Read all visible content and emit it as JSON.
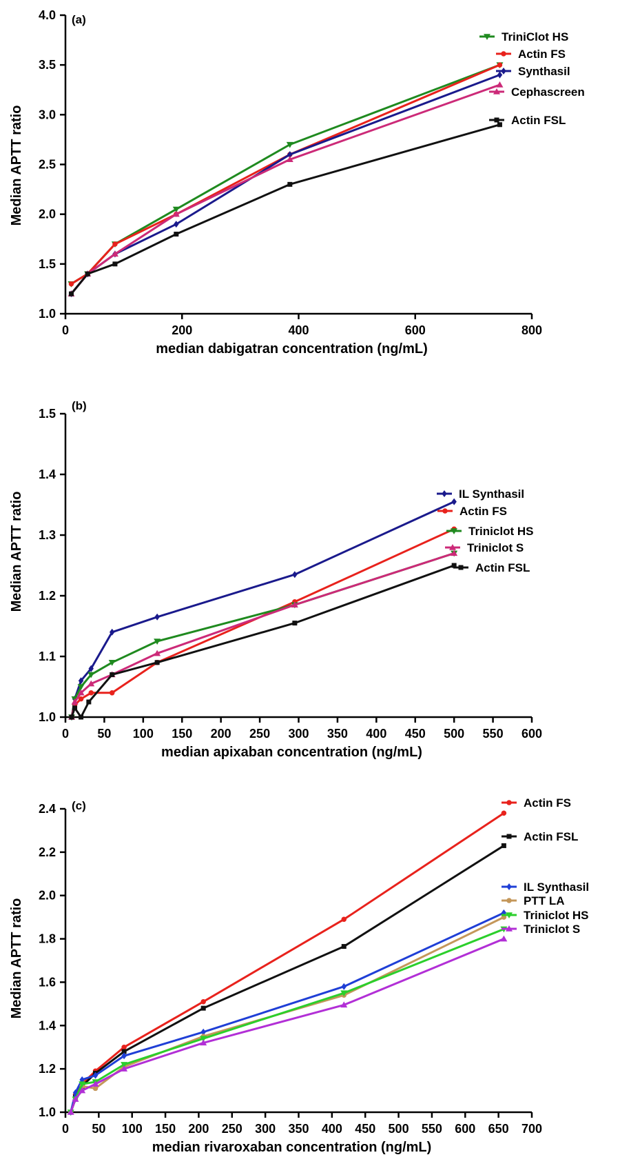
{
  "chart_data": [
    {
      "type": "line",
      "panel_label": "(a)",
      "xlabel": "median dabigatran concentration (ng/mL)",
      "ylabel": "Median APTT ratio",
      "xlim": [
        0,
        800
      ],
      "ylim": [
        1.0,
        4.0
      ],
      "xticks": [
        0,
        200,
        400,
        600,
        800
      ],
      "yticks": [
        1.0,
        1.5,
        2.0,
        2.5,
        3.0,
        3.5,
        4.0
      ],
      "xtick_labels": [
        "0",
        "200",
        "400",
        "600",
        "800"
      ],
      "ytick_labels": [
        "1.0",
        "1.5",
        "2.0",
        "2.5",
        "3.0",
        "3.5",
        "4.0"
      ],
      "legend_position": "right",
      "series": [
        {
          "name": "TriniClot HS",
          "color": "#1f8a1f",
          "marker": "triangle-down",
          "x": [
            10,
            38,
            85,
            190,
            385,
            745
          ],
          "y": [
            1.3,
            1.4,
            1.7,
            2.05,
            2.7,
            3.5
          ]
        },
        {
          "name": "Actin FS",
          "color": "#e8221c",
          "marker": "circle",
          "x": [
            10,
            38,
            85,
            190,
            385,
            745
          ],
          "y": [
            1.3,
            1.4,
            1.7,
            2.0,
            2.6,
            3.5
          ]
        },
        {
          "name": "Synthasil",
          "color": "#1a1a8c",
          "marker": "diamond",
          "x": [
            10,
            38,
            85,
            190,
            385,
            745
          ],
          "y": [
            1.2,
            1.4,
            1.6,
            1.9,
            2.6,
            3.4
          ]
        },
        {
          "name": "Cephascreen",
          "color": "#cc2a78",
          "marker": "triangle-up",
          "x": [
            10,
            38,
            85,
            190,
            385,
            745
          ],
          "y": [
            1.2,
            1.4,
            1.6,
            2.0,
            2.55,
            3.3
          ]
        },
        {
          "name": "Actin FSL",
          "color": "#111111",
          "marker": "square",
          "x": [
            10,
            38,
            85,
            190,
            385,
            745
          ],
          "y": [
            1.2,
            1.4,
            1.5,
            1.8,
            2.3,
            2.9
          ]
        }
      ]
    },
    {
      "type": "line",
      "panel_label": "(b)",
      "xlabel": "median apixaban concentration (ng/mL)",
      "ylabel": "Median APTT ratio",
      "xlim": [
        0,
        600
      ],
      "ylim": [
        1.0,
        1.5
      ],
      "xticks": [
        0,
        50,
        100,
        150,
        200,
        250,
        300,
        350,
        400,
        450,
        500,
        550,
        600
      ],
      "yticks": [
        1.0,
        1.1,
        1.2,
        1.3,
        1.4,
        1.5
      ],
      "xtick_labels": [
        "0",
        "50",
        "100",
        "150",
        "200",
        "250",
        "300",
        "350",
        "400",
        "450",
        "500",
        "550",
        "600"
      ],
      "ytick_labels": [
        "1.0",
        "1.1",
        "1.2",
        "1.3",
        "1.4",
        "1.5"
      ],
      "legend_position": "right",
      "series": [
        {
          "name": "IL Synthasil",
          "color": "#1a1a8c",
          "marker": "diamond",
          "x": [
            8,
            12,
            20,
            33,
            60,
            118,
            295,
            500
          ],
          "y": [
            1.0,
            1.03,
            1.06,
            1.08,
            1.14,
            1.165,
            1.235,
            1.355
          ]
        },
        {
          "name": "Actin FS",
          "color": "#e8221c",
          "marker": "circle",
          "x": [
            8,
            12,
            20,
            33,
            60,
            118,
            295,
            500
          ],
          "y": [
            1.0,
            1.02,
            1.03,
            1.04,
            1.04,
            1.09,
            1.19,
            1.31
          ]
        },
        {
          "name": "Triniclot HS",
          "color": "#1f8a1f",
          "marker": "triangle-down",
          "x": [
            8,
            12,
            20,
            33,
            60,
            118,
            295,
            500
          ],
          "y": [
            1.0,
            1.03,
            1.05,
            1.07,
            1.09,
            1.125,
            1.185,
            1.27
          ]
        },
        {
          "name": "Triniclot S",
          "color": "#cc2a78",
          "marker": "triangle-up",
          "x": [
            8,
            12,
            20,
            33,
            60,
            118,
            295,
            500
          ],
          "y": [
            1.0,
            1.025,
            1.04,
            1.055,
            1.07,
            1.105,
            1.185,
            1.27
          ]
        },
        {
          "name": "Actin FSL",
          "color": "#111111",
          "marker": "square",
          "x": [
            8,
            12,
            20,
            30,
            60,
            118,
            295,
            500
          ],
          "y": [
            1.0,
            1.015,
            1.0,
            1.025,
            1.07,
            1.09,
            1.155,
            1.25
          ]
        }
      ]
    },
    {
      "type": "line",
      "panel_label": "(c)",
      "xlabel": "median rivaroxaban concentration (ng/mL)",
      "ylabel": "Median APTT ratio",
      "xlim": [
        0,
        700
      ],
      "ylim": [
        1.0,
        2.4
      ],
      "xticks": [
        0,
        50,
        100,
        150,
        200,
        250,
        300,
        350,
        400,
        450,
        500,
        550,
        600,
        650,
        700
      ],
      "yticks": [
        1.0,
        1.2,
        1.4,
        1.6,
        1.8,
        2.0,
        2.2,
        2.4
      ],
      "xtick_labels": [
        "0",
        "50",
        "100",
        "150",
        "200",
        "250",
        "300",
        "350",
        "400",
        "450",
        "500",
        "550",
        "600",
        "650",
        "700"
      ],
      "ytick_labels": [
        "1.0",
        "1.2",
        "1.4",
        "1.6",
        "1.8",
        "2.0",
        "2.2",
        "2.4"
      ],
      "legend_position": "right",
      "series": [
        {
          "name": "Actin FS",
          "color": "#e8221c",
          "marker": "circle",
          "x": [
            8,
            15,
            25,
            45,
            88,
            207,
            418,
            658
          ],
          "y": [
            1.0,
            1.08,
            1.13,
            1.19,
            1.3,
            1.51,
            1.89,
            2.38
          ]
        },
        {
          "name": "Actin FSL",
          "color": "#111111",
          "marker": "square",
          "x": [
            8,
            15,
            25,
            45,
            88,
            207,
            418,
            658
          ],
          "y": [
            1.0,
            1.07,
            1.12,
            1.18,
            1.28,
            1.48,
            1.765,
            2.23
          ]
        },
        {
          "name": "IL Synthasil",
          "color": "#1f3fd6",
          "marker": "diamond",
          "x": [
            8,
            15,
            25,
            45,
            88,
            207,
            418,
            658
          ],
          "y": [
            1.0,
            1.09,
            1.15,
            1.17,
            1.26,
            1.37,
            1.58,
            1.92
          ]
        },
        {
          "name": "PTT LA",
          "color": "#c4975a",
          "marker": "circle",
          "x": [
            8,
            15,
            25,
            45,
            88,
            207,
            418,
            658
          ],
          "y": [
            1.0,
            1.06,
            1.12,
            1.11,
            1.21,
            1.35,
            1.54,
            1.9
          ]
        },
        {
          "name": "Triniclot HS",
          "color": "#2bcf2b",
          "marker": "triangle-down",
          "x": [
            8,
            15,
            25,
            45,
            88,
            207,
            418,
            658
          ],
          "y": [
            1.0,
            1.06,
            1.13,
            1.14,
            1.22,
            1.34,
            1.55,
            1.845
          ]
        },
        {
          "name": "Triniclot S",
          "color": "#b22fd6",
          "marker": "triangle-up",
          "x": [
            8,
            15,
            25,
            45,
            88,
            207,
            418,
            658
          ],
          "y": [
            1.0,
            1.06,
            1.1,
            1.13,
            1.2,
            1.32,
            1.495,
            1.8
          ]
        }
      ]
    }
  ]
}
